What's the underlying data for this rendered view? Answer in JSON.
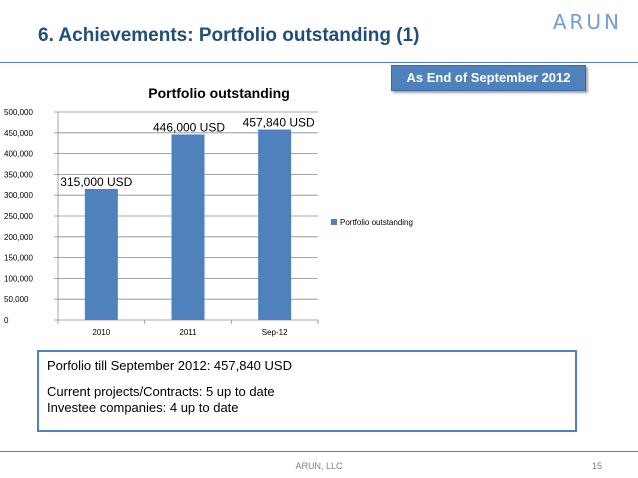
{
  "slide": {
    "title": "6. Achievements: Portfolio outstanding (1)",
    "logo": "ARUN",
    "badge": "As End of September 2012"
  },
  "info_box": {
    "line1": "Porfolio till September 2012: 457,840 USD",
    "line2": "Current projects/Contracts: 5 up to date",
    "line3": "Investee companies: 4 up to date"
  },
  "footer": {
    "company": "ARUN, LLC",
    "page": "15"
  },
  "colors": {
    "accent": "#4f81bd",
    "title": "#1f4e79",
    "bar": "#4f81bd"
  },
  "chart_data": {
    "type": "bar",
    "title": "Portfolio outstanding",
    "categories": [
      "2010",
      "2011",
      "Sep-12"
    ],
    "series": [
      {
        "name": "Portfolio outstanding",
        "values": [
          315000,
          446000,
          457840
        ]
      }
    ],
    "data_labels": [
      "315,000 USD",
      "446,000 USD",
      "457,840 USD"
    ],
    "ylim": [
      0,
      500000
    ],
    "yticks": [
      0,
      50000,
      100000,
      150000,
      200000,
      250000,
      300000,
      350000,
      400000,
      450000,
      500000
    ],
    "ytick_labels": [
      "0",
      "50,000",
      "100,000",
      "150,000",
      "200,000",
      "250,000",
      "300,000",
      "350,000",
      "400,000",
      "450,000",
      "500,000"
    ],
    "xlabel": "",
    "ylabel": "",
    "grid": true,
    "legend": "right"
  }
}
